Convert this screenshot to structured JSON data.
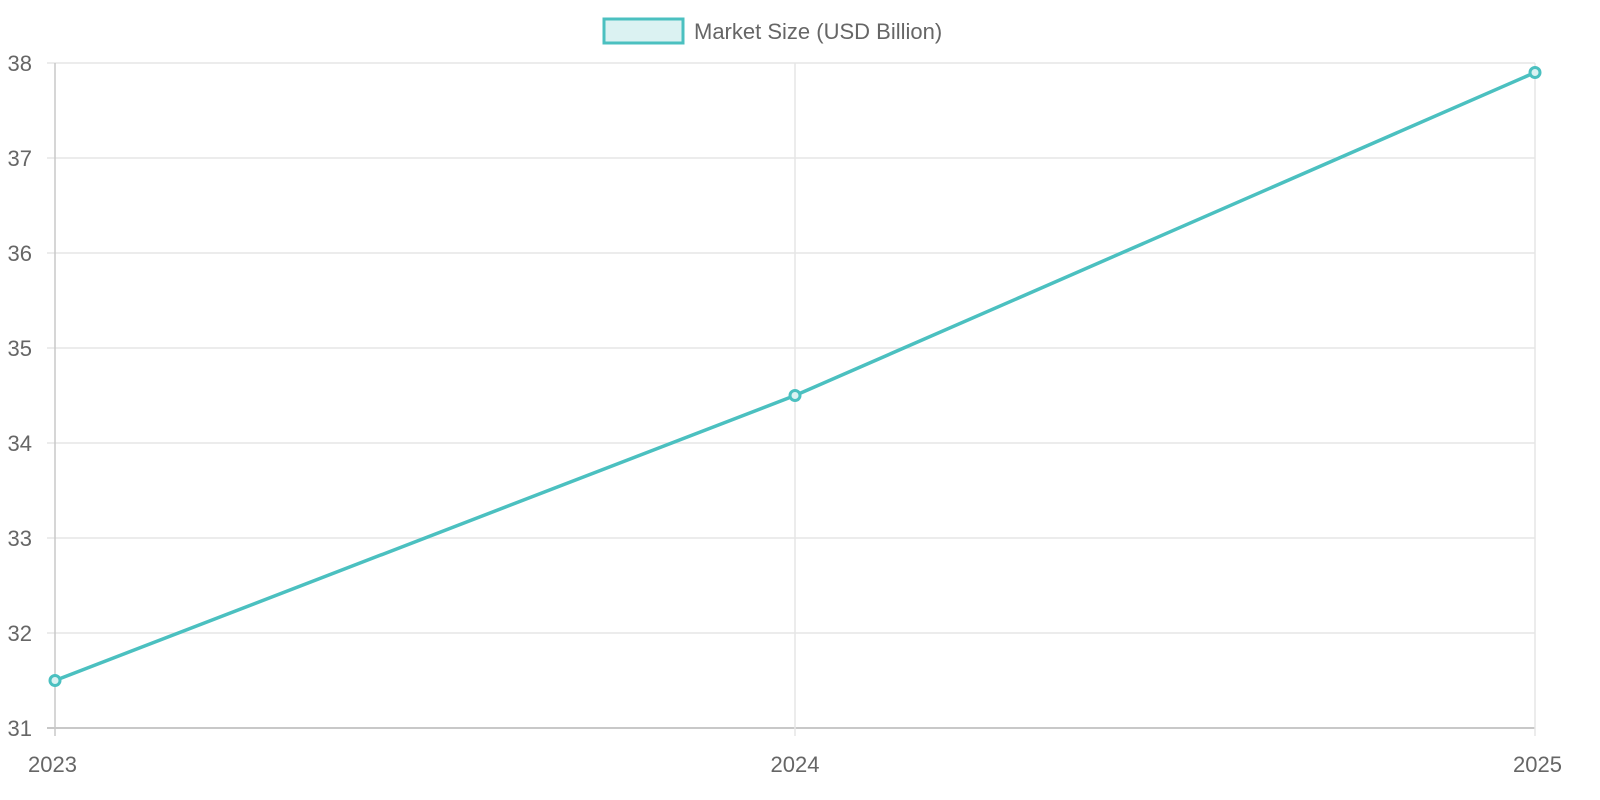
{
  "chart_data": {
    "type": "line",
    "title": "",
    "xlabel": "",
    "ylabel": "",
    "categories": [
      "2023",
      "2024",
      "2025"
    ],
    "series": [
      {
        "name": "Market Size (USD Billion)",
        "values": [
          31.5,
          34.5,
          37.9
        ],
        "color": "#4bc0c0",
        "fill": "#dbf2f2"
      }
    ],
    "ylim": [
      31,
      38
    ],
    "yticks": [
      "31",
      "32",
      "33",
      "34",
      "35",
      "36",
      "37",
      "38"
    ],
    "grid": true,
    "legend_position": "top"
  },
  "legend": {
    "label": "Market Size (USD Billion)"
  },
  "colors": {
    "line": "#4bc0c0",
    "legend_fill": "#dbf2f2",
    "grid": "#e5e5e5",
    "axis": "#c8c8c8",
    "text": "#666666"
  }
}
